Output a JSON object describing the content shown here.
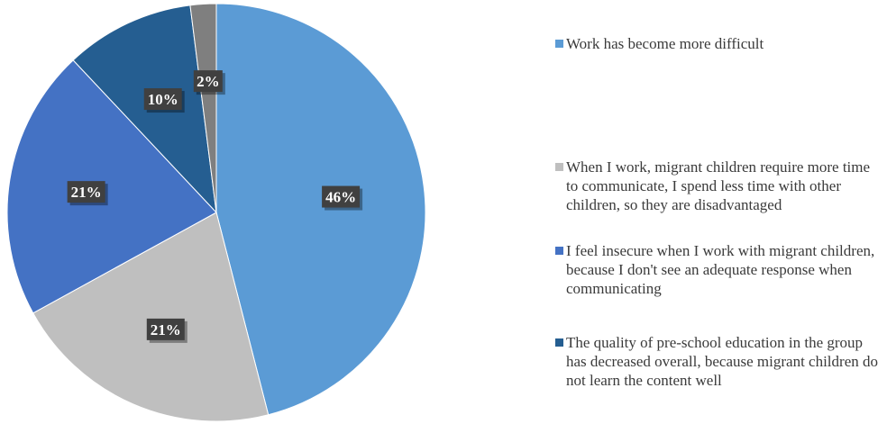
{
  "chart_data": {
    "type": "pie",
    "slices": [
      {
        "label": "Work has become more difficult",
        "value": 46,
        "data_label": "46%",
        "color": "#5b9bd5"
      },
      {
        "label": "When I work, migrant children require more time to communicate, I spend less time with other children, so they are disadvantaged",
        "value": 21,
        "data_label": "21%",
        "color": "#bfbfbf"
      },
      {
        "label": "I feel insecure when I work with migrant children, because I don't see an adequate response when communicating",
        "value": 21,
        "data_label": "21%",
        "color": "#4472c4"
      },
      {
        "label": "The quality of pre-school education in the group has decreased overall, because migrant children do not learn the content well",
        "value": 10,
        "data_label": "10%",
        "color": "#255e91"
      },
      {
        "label": "",
        "value": 2,
        "data_label": "2%",
        "color": "#7f7f7f"
      }
    ],
    "legend_position": "right"
  }
}
